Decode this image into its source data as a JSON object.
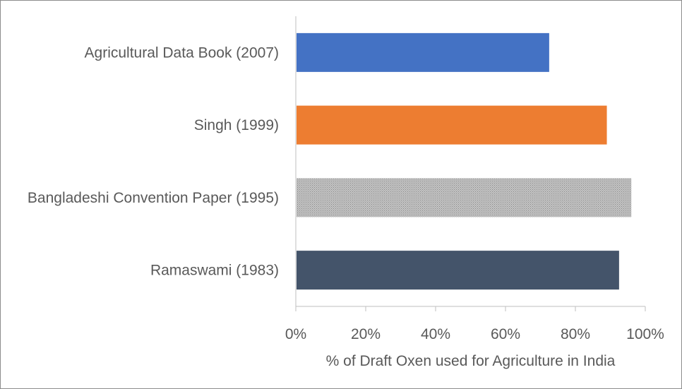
{
  "chart_data": {
    "type": "bar",
    "orientation": "horizontal",
    "categories": [
      "Agricultural Data Book (2007)",
      "Singh (1999)",
      "Bangladeshi Convention Paper (1995)",
      "Ramaswami (1983)"
    ],
    "values": [
      0.725,
      0.89,
      0.96,
      0.925
    ],
    "bar_colors": [
      "#4472c4",
      "#ed7d31",
      "#a5a5a5",
      "#44546a"
    ],
    "bar_patterns": [
      "solid",
      "solid",
      "dotted",
      "solid"
    ],
    "title": "",
    "xlabel": "% of Draft Oxen used for Agriculture in India",
    "ylabel": "",
    "xlim": [
      0,
      1
    ],
    "xticks": [
      0,
      0.2,
      0.4,
      0.6,
      0.8,
      1.0
    ],
    "xtick_labels": [
      "0%",
      "20%",
      "40%",
      "60%",
      "80%",
      "100%"
    ],
    "grid": false,
    "legend": "none",
    "axis_color": "#bfbfbf",
    "text_color": "#595959"
  }
}
